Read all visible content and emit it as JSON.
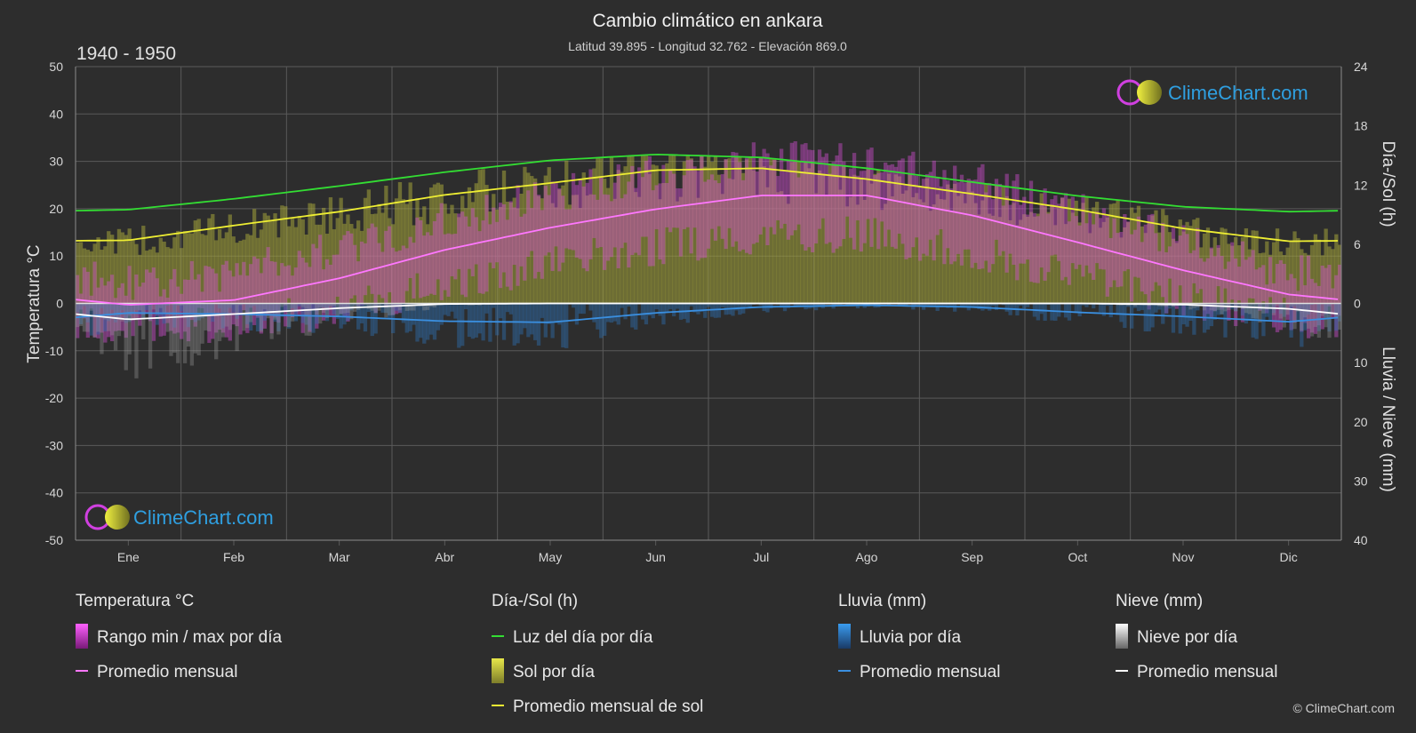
{
  "header": {
    "title": "Cambio climático en ankara",
    "subtitle": "Latitud 39.895 - Longitud 32.762 - Elevación 869.0",
    "period": "1940 - 1950"
  },
  "brand": {
    "name": "ClimeChart.com",
    "copyright": "© ClimeChart.com"
  },
  "colors": {
    "background": "#2d2d2d",
    "grid": "#5a5a5a",
    "daylight": "#33dd33",
    "sunshine_avg": "#eeee33",
    "sunshine_fill": "#a8a83a",
    "temp_range": "#e040e0",
    "temp_avg": "#ff77ff",
    "rain": "#2f88d8",
    "rain_avg": "#3a8fe0",
    "snow": "#bdbdbd",
    "snow_avg": "#ffffff",
    "brand": "#2f9fe0"
  },
  "chart_data": {
    "type": "line",
    "categories": [
      "Ene",
      "Feb",
      "Mar",
      "Abr",
      "May",
      "Jun",
      "Jul",
      "Ago",
      "Sep",
      "Oct",
      "Nov",
      "Dic"
    ],
    "axes": {
      "left": {
        "label": "Temperatura °C",
        "min": -50,
        "max": 50,
        "ticks": [
          50,
          40,
          30,
          20,
          10,
          0,
          -10,
          -20,
          -30,
          -40,
          -50
        ]
      },
      "right_top": {
        "label": "Día-/Sol (h)",
        "min": 0,
        "max": 24,
        "ticks": [
          24,
          18,
          12,
          6,
          0
        ]
      },
      "right_bottom": {
        "label": "Lluvia / Nieve (mm)",
        "min": 0,
        "max": 40,
        "ticks": [
          10,
          20,
          30,
          40
        ]
      }
    },
    "grid": true,
    "series": [
      {
        "name": "Luz del día por día",
        "axis": "hours",
        "values": [
          9.5,
          10.6,
          11.9,
          13.3,
          14.5,
          15.1,
          14.8,
          13.7,
          12.3,
          10.9,
          9.8,
          9.3
        ]
      },
      {
        "name": "Promedio mensual de sol",
        "axis": "hours",
        "values": [
          6.4,
          7.9,
          9.3,
          11.0,
          12.2,
          13.5,
          13.7,
          12.6,
          11.1,
          9.5,
          7.6,
          6.3
        ]
      },
      {
        "name": "Promedio mensual",
        "group": "Temperatura °C",
        "axis": "temperature",
        "values": [
          -0.3,
          0.7,
          5.3,
          11.3,
          16.0,
          19.9,
          22.8,
          22.8,
          18.6,
          12.9,
          7.0,
          1.9
        ]
      },
      {
        "name": "Rango min / max por día (max)",
        "axis": "temperature",
        "values": [
          4.5,
          6.5,
          12.0,
          17.5,
          23.0,
          27.5,
          30.5,
          30.5,
          26.0,
          19.5,
          13.0,
          6.5
        ]
      },
      {
        "name": "Rango min / max por día (min)",
        "axis": "temperature",
        "values": [
          -5.5,
          -4.5,
          -1.0,
          4.0,
          8.5,
          12.0,
          14.5,
          14.5,
          10.5,
          6.0,
          1.0,
          -3.0
        ]
      },
      {
        "name": "Promedio mensual",
        "group": "Lluvia (mm)",
        "axis": "precipitation",
        "values": [
          1.6,
          1.8,
          2.2,
          3.0,
          3.2,
          1.6,
          0.6,
          0.3,
          0.6,
          1.5,
          2.2,
          3.1
        ]
      },
      {
        "name": "Promedio mensual",
        "group": "Nieve (mm)",
        "axis": "precipitation",
        "values": [
          2.7,
          1.8,
          0.8,
          0.1,
          0.0,
          0.0,
          0.0,
          0.0,
          0.0,
          0.0,
          0.2,
          0.9
        ]
      }
    ]
  },
  "legend": {
    "groups": [
      {
        "heading": "Temperatura °C",
        "items": [
          {
            "label": "Rango min / max por día",
            "symbol": "swatch",
            "color": "#e040e0"
          },
          {
            "label": "Promedio mensual",
            "symbol": "line",
            "color": "#ff77ff"
          }
        ]
      },
      {
        "heading": "Día-/Sol (h)",
        "items": [
          {
            "label": "Luz del día por día",
            "symbol": "line",
            "color": "#33dd33"
          },
          {
            "label": "Sol por día",
            "symbol": "swatch",
            "color": "#d8d83a"
          },
          {
            "label": "Promedio mensual de sol",
            "symbol": "line",
            "color": "#eeee33"
          }
        ]
      },
      {
        "heading": "Lluvia (mm)",
        "items": [
          {
            "label": "Lluvia por día",
            "symbol": "swatch",
            "color": "#2f88d8"
          },
          {
            "label": "Promedio mensual",
            "symbol": "line",
            "color": "#3a8fe0"
          }
        ]
      },
      {
        "heading": "Nieve (mm)",
        "items": [
          {
            "label": "Nieve por día",
            "symbol": "swatch",
            "color": "#e8e8e8"
          },
          {
            "label": "Promedio mensual",
            "symbol": "line",
            "color": "#ffffff"
          }
        ]
      }
    ]
  }
}
